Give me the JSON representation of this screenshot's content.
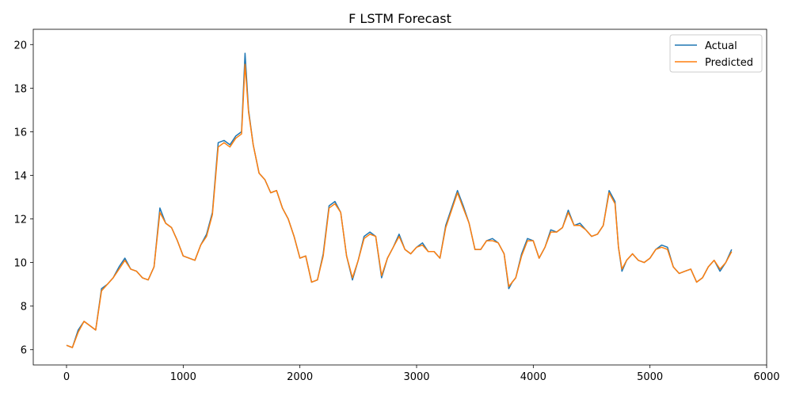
{
  "chart_data": {
    "type": "line",
    "title": "F LSTM Forecast",
    "xlabel": "",
    "ylabel": "",
    "xlim": [
      -285,
      6000
    ],
    "ylim": [
      5.3,
      20.7
    ],
    "xticks": [
      0,
      1000,
      2000,
      3000,
      4000,
      5000,
      6000
    ],
    "yticks": [
      6,
      8,
      10,
      12,
      14,
      16,
      18,
      20
    ],
    "grid": false,
    "legend_position": "top-right",
    "colors": {
      "Actual": "#1f77b4",
      "Predicted": "#ff7f0e"
    },
    "x": [
      0,
      50,
      100,
      150,
      200,
      250,
      300,
      350,
      400,
      450,
      500,
      550,
      600,
      650,
      700,
      750,
      800,
      850,
      900,
      950,
      1000,
      1050,
      1100,
      1150,
      1200,
      1250,
      1300,
      1350,
      1400,
      1450,
      1500,
      1530,
      1560,
      1600,
      1650,
      1700,
      1750,
      1800,
      1850,
      1900,
      1950,
      2000,
      2050,
      2100,
      2150,
      2200,
      2250,
      2300,
      2350,
      2400,
      2450,
      2500,
      2550,
      2600,
      2650,
      2700,
      2750,
      2800,
      2850,
      2900,
      2950,
      3000,
      3050,
      3100,
      3150,
      3200,
      3250,
      3300,
      3350,
      3400,
      3450,
      3500,
      3550,
      3600,
      3650,
      3700,
      3750,
      3790,
      3820,
      3850,
      3900,
      3950,
      4000,
      4050,
      4100,
      4150,
      4200,
      4250,
      4300,
      4350,
      4400,
      4450,
      4500,
      4550,
      4600,
      4650,
      4700,
      4730,
      4760,
      4800,
      4850,
      4900,
      4950,
      5000,
      5050,
      5100,
      5150,
      5200,
      5250,
      5300,
      5350,
      5400,
      5450,
      5500,
      5550,
      5600,
      5650,
      5700
    ],
    "series": [
      {
        "name": "Actual",
        "values": [
          6.2,
          6.1,
          6.9,
          7.3,
          7.1,
          6.9,
          8.8,
          9.0,
          9.3,
          9.8,
          10.2,
          9.7,
          9.6,
          9.3,
          9.2,
          9.8,
          12.5,
          11.8,
          11.6,
          11.0,
          10.3,
          10.2,
          10.1,
          10.8,
          11.3,
          12.3,
          15.5,
          15.6,
          15.4,
          15.8,
          16.0,
          19.6,
          17.0,
          15.4,
          14.1,
          13.8,
          13.2,
          13.3,
          12.5,
          12.0,
          11.2,
          10.2,
          10.3,
          9.1,
          9.2,
          10.4,
          12.6,
          12.8,
          12.3,
          10.3,
          9.2,
          10.1,
          11.2,
          11.4,
          11.2,
          9.3,
          10.2,
          10.7,
          11.3,
          10.6,
          10.4,
          10.7,
          10.9,
          10.5,
          10.5,
          10.2,
          11.7,
          12.5,
          13.3,
          12.6,
          11.8,
          10.6,
          10.6,
          11.0,
          11.1,
          10.9,
          10.4,
          8.8,
          9.1,
          9.3,
          10.4,
          11.1,
          11.0,
          10.2,
          10.7,
          11.5,
          11.4,
          11.6,
          12.4,
          11.7,
          11.8,
          11.5,
          11.2,
          11.3,
          11.7,
          13.3,
          12.8,
          10.7,
          9.6,
          10.1,
          10.4,
          10.1,
          10.0,
          10.2,
          10.6,
          10.8,
          10.7,
          9.8,
          9.5,
          9.6,
          9.7,
          9.1,
          9.3,
          9.8,
          10.1,
          9.6,
          10.0,
          10.6
        ]
      },
      {
        "name": "Predicted",
        "values": [
          6.2,
          6.1,
          6.8,
          7.3,
          7.1,
          6.9,
          8.7,
          9.0,
          9.3,
          9.7,
          10.1,
          9.7,
          9.6,
          9.3,
          9.2,
          9.8,
          12.3,
          11.8,
          11.6,
          11.0,
          10.3,
          10.2,
          10.1,
          10.8,
          11.2,
          12.2,
          15.3,
          15.5,
          15.3,
          15.7,
          15.9,
          19.1,
          16.9,
          15.4,
          14.1,
          13.8,
          13.2,
          13.3,
          12.5,
          12.0,
          11.2,
          10.2,
          10.3,
          9.1,
          9.2,
          10.3,
          12.5,
          12.7,
          12.3,
          10.3,
          9.3,
          10.1,
          11.1,
          11.3,
          11.2,
          9.4,
          10.2,
          10.7,
          11.2,
          10.6,
          10.4,
          10.7,
          10.8,
          10.5,
          10.5,
          10.2,
          11.6,
          12.4,
          13.2,
          12.5,
          11.8,
          10.6,
          10.6,
          11.0,
          11.0,
          10.9,
          10.4,
          8.9,
          9.1,
          9.3,
          10.3,
          11.0,
          11.0,
          10.2,
          10.7,
          11.4,
          11.4,
          11.6,
          12.3,
          11.7,
          11.7,
          11.5,
          11.2,
          11.3,
          11.7,
          13.2,
          12.7,
          10.7,
          9.7,
          10.1,
          10.4,
          10.1,
          10.0,
          10.2,
          10.6,
          10.7,
          10.6,
          9.8,
          9.5,
          9.6,
          9.7,
          9.1,
          9.3,
          9.8,
          10.1,
          9.7,
          10.0,
          10.5
        ]
      }
    ]
  }
}
